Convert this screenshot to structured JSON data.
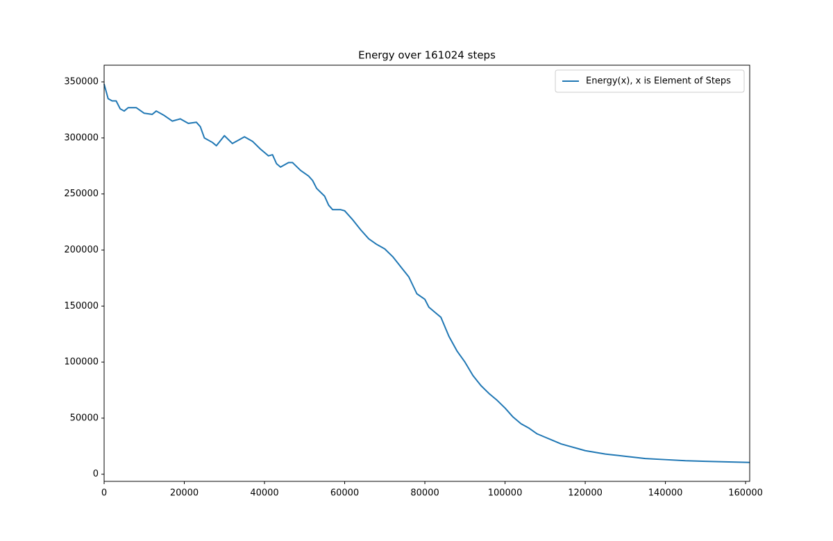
{
  "chart_data": {
    "type": "line",
    "title": "Energy over  161024 steps",
    "x": [
      0,
      1000,
      2000,
      3000,
      4000,
      5000,
      6000,
      8000,
      10000,
      12000,
      13000,
      15000,
      17000,
      19000,
      21000,
      23000,
      24000,
      25000,
      27000,
      28000,
      30000,
      32000,
      34000,
      35000,
      37000,
      39000,
      41000,
      42000,
      43000,
      44000,
      46000,
      47000,
      49000,
      51000,
      52000,
      53000,
      55000,
      56000,
      57000,
      59000,
      60000,
      62000,
      64000,
      66000,
      68000,
      70000,
      72000,
      74000,
      76000,
      78000,
      80000,
      81000,
      83000,
      84000,
      86000,
      88000,
      90000,
      92000,
      94000,
      96000,
      98000,
      100000,
      102000,
      104000,
      106000,
      108000,
      110000,
      112000,
      114000,
      116000,
      118000,
      120000,
      125000,
      130000,
      135000,
      140000,
      145000,
      150000,
      155000,
      161024
    ],
    "series": [
      {
        "name": "Energy(x), x is Element of Steps",
        "color": "#1f77b4",
        "values": [
          348000,
          335000,
          333000,
          333000,
          326000,
          324000,
          327000,
          327000,
          322000,
          321000,
          324000,
          320000,
          315000,
          317000,
          313000,
          314000,
          310000,
          300000,
          296000,
          293000,
          302000,
          295000,
          299000,
          301000,
          297000,
          290000,
          284000,
          285000,
          277000,
          274000,
          278000,
          278000,
          271000,
          266000,
          262000,
          255000,
          248000,
          240000,
          236000,
          236000,
          235000,
          227000,
          218000,
          210000,
          205000,
          201000,
          194000,
          185000,
          176000,
          161000,
          156000,
          149000,
          143000,
          140000,
          123000,
          110000,
          100000,
          88000,
          79000,
          72000,
          66000,
          59000,
          51000,
          45000,
          41000,
          36000,
          33000,
          30000,
          27000,
          25000,
          23000,
          21000,
          18000,
          16000,
          14000,
          13000,
          12000,
          11500,
          11000,
          10500
        ]
      }
    ],
    "xlim": [
      0,
      161024
    ],
    "xticks": [
      0,
      20000,
      40000,
      60000,
      80000,
      100000,
      120000,
      140000,
      160000
    ],
    "ylim": [
      -6375,
      364875
    ],
    "yticks": [
      0,
      50000,
      100000,
      150000,
      200000,
      250000,
      300000,
      350000
    ],
    "legend": "upper right"
  }
}
